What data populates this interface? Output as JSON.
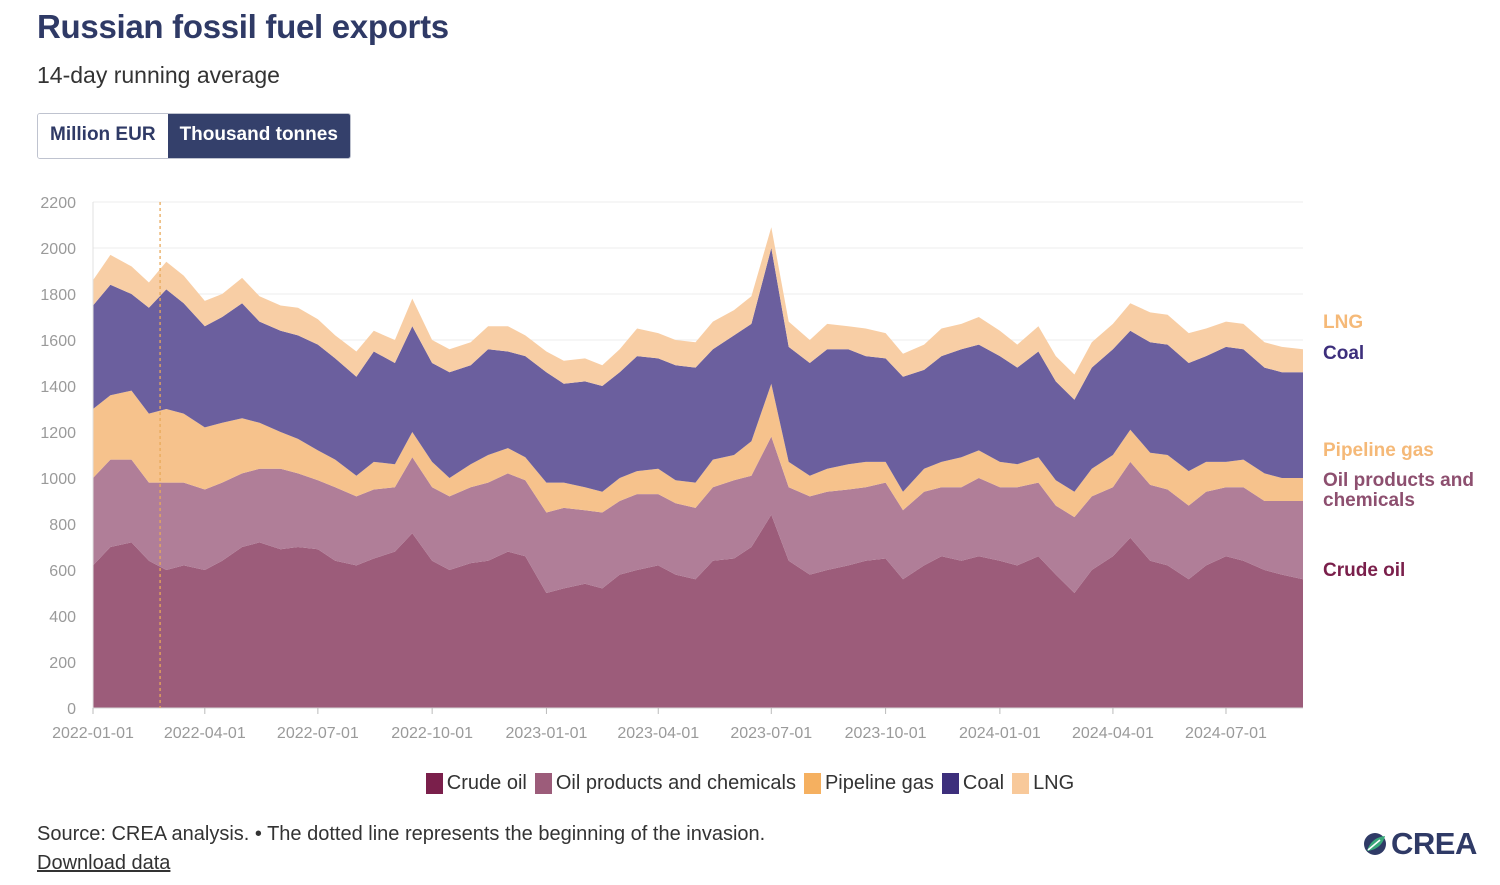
{
  "header": {
    "title": "Russian fossil fuel exports",
    "subtitle": "14-day running average",
    "toggle": [
      {
        "label": "Million EUR",
        "active": false
      },
      {
        "label": "Thousand tonnes",
        "active": true
      }
    ]
  },
  "chart_data": {
    "type": "area",
    "stacked": true,
    "title": "Russian fossil fuel exports",
    "subtitle": "14-day running average",
    "unit": "Thousand tonnes",
    "ylim": [
      0,
      2200
    ],
    "yticks": [
      0,
      200,
      400,
      600,
      800,
      1000,
      1200,
      1400,
      1600,
      1800,
      2000,
      2200
    ],
    "xlim": [
      "2022-01-01",
      "2024-09-01"
    ],
    "xticks": [
      "2022-01-01",
      "2022-04-01",
      "2022-07-01",
      "2022-10-01",
      "2023-01-01",
      "2023-04-01",
      "2023-07-01",
      "2023-10-01",
      "2024-01-01",
      "2024-04-01",
      "2024-07-01"
    ],
    "grid": true,
    "invasion_marker": "2022-02-24",
    "x": [
      "2022-01-01",
      "2022-01-15",
      "2022-02-01",
      "2022-02-15",
      "2022-03-01",
      "2022-03-15",
      "2022-04-01",
      "2022-04-15",
      "2022-05-01",
      "2022-05-15",
      "2022-06-01",
      "2022-06-15",
      "2022-07-01",
      "2022-07-15",
      "2022-08-01",
      "2022-08-15",
      "2022-09-01",
      "2022-09-15",
      "2022-10-01",
      "2022-10-15",
      "2022-11-01",
      "2022-11-15",
      "2022-12-01",
      "2022-12-15",
      "2023-01-01",
      "2023-01-15",
      "2023-02-01",
      "2023-02-15",
      "2023-03-01",
      "2023-03-15",
      "2023-04-01",
      "2023-04-15",
      "2023-05-01",
      "2023-05-15",
      "2023-06-01",
      "2023-06-15",
      "2023-07-01",
      "2023-07-15",
      "2023-08-01",
      "2023-08-15",
      "2023-09-01",
      "2023-09-15",
      "2023-10-01",
      "2023-10-15",
      "2023-11-01",
      "2023-11-15",
      "2023-12-01",
      "2023-12-15",
      "2024-01-01",
      "2024-01-15",
      "2024-02-01",
      "2024-02-15",
      "2024-03-01",
      "2024-03-15",
      "2024-04-01",
      "2024-04-15",
      "2024-05-01",
      "2024-05-15",
      "2024-06-01",
      "2024-06-15",
      "2024-07-01",
      "2024-07-15",
      "2024-08-01",
      "2024-08-15",
      "2024-09-01"
    ],
    "series": [
      {
        "name": "Crude oil",
        "color": "#9c5c7a",
        "values": [
          620,
          700,
          720,
          640,
          600,
          620,
          600,
          640,
          700,
          720,
          690,
          700,
          690,
          640,
          620,
          650,
          680,
          760,
          640,
          600,
          630,
          640,
          680,
          660,
          500,
          520,
          540,
          520,
          580,
          600,
          620,
          580,
          560,
          640,
          650,
          700,
          840,
          640,
          580,
          600,
          620,
          640,
          650,
          560,
          620,
          660,
          640,
          660,
          640,
          620,
          660,
          580,
          500,
          600,
          660,
          740,
          640,
          620,
          560,
          620,
          660,
          640,
          600,
          580,
          560
        ]
      },
      {
        "name": "Oil products and chemicals",
        "color": "#b07e98",
        "values": [
          380,
          380,
          360,
          340,
          380,
          360,
          350,
          340,
          320,
          320,
          350,
          320,
          300,
          320,
          300,
          300,
          280,
          330,
          320,
          320,
          330,
          340,
          340,
          330,
          350,
          350,
          320,
          330,
          320,
          330,
          310,
          310,
          310,
          320,
          340,
          310,
          340,
          320,
          340,
          340,
          330,
          320,
          330,
          300,
          320,
          300,
          320,
          340,
          320,
          340,
          320,
          300,
          330,
          320,
          300,
          330,
          330,
          330,
          320,
          320,
          300,
          320,
          300,
          320,
          340
        ]
      },
      {
        "name": "Pipeline gas",
        "color": "#f6c28c",
        "values": [
          300,
          280,
          300,
          300,
          320,
          300,
          270,
          260,
          240,
          200,
          160,
          150,
          130,
          120,
          90,
          120,
          100,
          110,
          110,
          80,
          100,
          120,
          110,
          100,
          130,
          110,
          100,
          90,
          100,
          100,
          110,
          100,
          110,
          120,
          110,
          150,
          230,
          110,
          90,
          100,
          110,
          110,
          90,
          80,
          100,
          110,
          130,
          120,
          110,
          100,
          110,
          110,
          110,
          120,
          140,
          140,
          140,
          150,
          150,
          130,
          110,
          120,
          120,
          100,
          100
        ]
      },
      {
        "name": "Coal",
        "color": "#6b5f9e",
        "values": [
          450,
          480,
          420,
          460,
          520,
          480,
          440,
          460,
          500,
          440,
          440,
          450,
          460,
          440,
          430,
          480,
          440,
          460,
          430,
          460,
          430,
          460,
          420,
          440,
          480,
          430,
          460,
          460,
          460,
          500,
          480,
          500,
          500,
          480,
          520,
          510,
          590,
          500,
          490,
          520,
          500,
          460,
          450,
          500,
          430,
          460,
          470,
          460,
          460,
          420,
          460,
          430,
          400,
          440,
          460,
          430,
          480,
          480,
          470,
          460,
          500,
          480,
          460,
          460,
          460
        ]
      },
      {
        "name": "LNG",
        "color": "#f8cea5",
        "values": [
          110,
          130,
          120,
          110,
          120,
          120,
          110,
          100,
          110,
          110,
          110,
          120,
          110,
          100,
          110,
          90,
          100,
          120,
          100,
          100,
          100,
          100,
          110,
          90,
          90,
          100,
          100,
          90,
          100,
          120,
          110,
          110,
          110,
          120,
          110,
          120,
          90,
          110,
          100,
          110,
          100,
          120,
          110,
          100,
          110,
          120,
          110,
          120,
          110,
          100,
          110,
          110,
          110,
          110,
          110,
          120,
          130,
          130,
          130,
          120,
          110,
          110,
          110,
          110,
          100
        ]
      }
    ],
    "right_labels": [
      {
        "text": "LNG",
        "color": "#f5b978"
      },
      {
        "text": "Coal",
        "color": "#3d2f7c"
      },
      {
        "text": "Pipeline gas",
        "color": "#f5b978"
      },
      {
        "text": "Oil products and",
        "color": "#8d4f6f"
      },
      {
        "text": "chemicals",
        "color": "#8d4f6f"
      },
      {
        "text": "Crude oil",
        "color": "#7a1f4b"
      }
    ],
    "legend": [
      {
        "label": "Crude oil",
        "color": "#7a1f4b"
      },
      {
        "label": "Oil products and chemicals",
        "color": "#9c5c7a"
      },
      {
        "label": "Pipeline gas",
        "color": "#f5b060"
      },
      {
        "label": "Coal",
        "color": "#3d2f7c"
      },
      {
        "label": "LNG",
        "color": "#f8c99a"
      }
    ]
  },
  "footer": {
    "source": "Source: CREA analysis. • The dotted line represents the beginning of the invasion.",
    "download": "Download data",
    "logo_text": "CREA"
  }
}
